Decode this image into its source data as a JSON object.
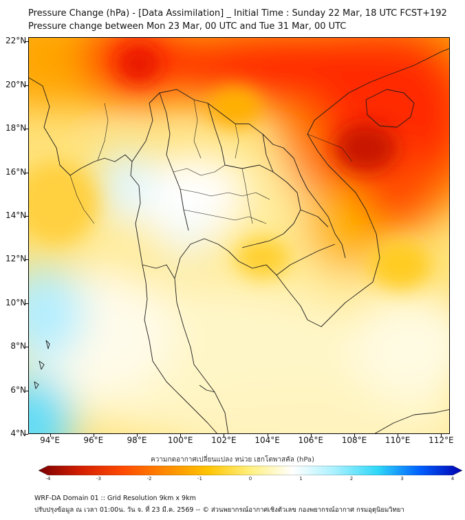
{
  "title_line1": "Pressure Change (hPa) - [Data Assimilation] _ Initial Time : Sunday 22 Mar, 18 UTC FCST+192",
  "title_line2": "Pressure change between Mon 23 Mar, 00 UTC and Tue 31 Mar, 00 UTC",
  "map": {
    "lat_labels": [
      "22°N",
      "20°N",
      "18°N",
      "16°N",
      "14°N",
      "12°N",
      "10°N",
      "8°N",
      "6°N",
      "4°N"
    ],
    "lon_labels": [
      "94°E",
      "96°E",
      "98°E",
      "100°E",
      "102°E",
      "104°E",
      "106°E",
      "108°E",
      "110°E",
      "112°E"
    ],
    "lat_range": [
      4,
      22.2
    ],
    "lon_range": [
      93,
      112.4
    ]
  },
  "colorbar": {
    "label": "ความกดอากาศเปลี่ยนแปลง หน่วย เฮกโตพาสคัล (hPa)",
    "ticks": [
      "-4",
      "-3",
      "-2",
      "-1",
      "0",
      "1",
      "2",
      "3",
      "4"
    ],
    "range": [
      -4,
      4
    ],
    "colors": [
      "#7a0000",
      "#d41f00",
      "#ff4a00",
      "#ff8a00",
      "#ffc400",
      "#fff080",
      "#ffffff",
      "#a8f0ff",
      "#30d8f8",
      "#0060ff",
      "#0000b0"
    ]
  },
  "footer": {
    "line1": "WRF-DA Domain 01 :: Grid Resolution 9km x 9km",
    "line2": "ปรับปรุงข้อมูล ณ เวลา 01:00น. วัน จ. ที่ 23 มี.ค. 2569 -- © ส่วนพยากรณ์อากาศเชิงตัวเลข กองพยากรณ์อากาศ กรมอุตุนิยมวิทยา"
  }
}
